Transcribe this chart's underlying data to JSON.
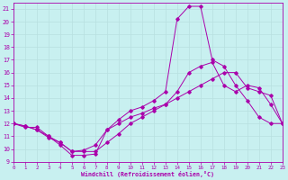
{
  "xlabel": "Windchill (Refroidissement éolien,°C)",
  "bg_color": "#c8f0f0",
  "line_color": "#aa00aa",
  "grid_color": "#b8e0e0",
  "x_ticks": [
    0,
    1,
    2,
    3,
    4,
    5,
    6,
    7,
    8,
    9,
    10,
    11,
    12,
    13,
    14,
    15,
    16,
    17,
    18,
    19,
    20,
    21,
    22,
    23
  ],
  "y_ticks": [
    9,
    10,
    11,
    12,
    13,
    14,
    15,
    16,
    17,
    18,
    19,
    20,
    21
  ],
  "xlim": [
    0,
    23
  ],
  "ylim": [
    9,
    21.5
  ],
  "line1_x": [
    0,
    1,
    2,
    3,
    4,
    5,
    6,
    7,
    8,
    9,
    10,
    11,
    12,
    13,
    14,
    15,
    16,
    17,
    18,
    19,
    20,
    21,
    22,
    23
  ],
  "line1_y": [
    12.0,
    11.7,
    11.7,
    11.0,
    10.3,
    9.5,
    9.5,
    9.6,
    11.5,
    12.3,
    13.0,
    13.3,
    13.8,
    14.5,
    20.2,
    21.2,
    21.2,
    17.0,
    16.5,
    15.0,
    13.8,
    12.5,
    12.0,
    12.0
  ],
  "line2_x": [
    0,
    1,
    2,
    3,
    4,
    5,
    6,
    7,
    8,
    9,
    10,
    11,
    12,
    13,
    14,
    15,
    16,
    17,
    18,
    19,
    20,
    21,
    22,
    23
  ],
  "line2_y": [
    12.0,
    11.8,
    11.5,
    10.9,
    10.5,
    9.8,
    9.9,
    10.3,
    11.5,
    12.0,
    12.5,
    12.8,
    13.2,
    13.5,
    14.5,
    16.0,
    16.5,
    16.8,
    15.0,
    14.5,
    15.0,
    14.8,
    13.5,
    12.0
  ],
  "line3_x": [
    0,
    1,
    2,
    3,
    4,
    5,
    6,
    7,
    8,
    9,
    10,
    11,
    12,
    13,
    14,
    15,
    16,
    17,
    18,
    19,
    20,
    21,
    22,
    23
  ],
  "line3_y": [
    12.0,
    11.8,
    11.5,
    11.0,
    10.5,
    9.8,
    9.8,
    9.8,
    10.5,
    11.2,
    12.0,
    12.5,
    13.0,
    13.5,
    14.0,
    14.5,
    15.0,
    15.5,
    16.0,
    16.0,
    14.8,
    14.5,
    14.2,
    12.0
  ]
}
